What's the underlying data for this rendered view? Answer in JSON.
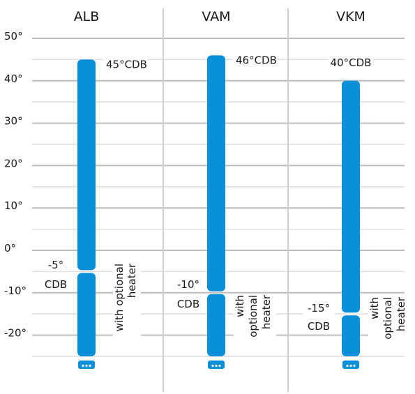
{
  "chart_data": {
    "type": "bar",
    "orientation": "vertical-range",
    "y_unit": "°C",
    "ylim": [
      -25,
      50
    ],
    "y_ticks": [
      50,
      40,
      30,
      20,
      10,
      0,
      -10,
      -20
    ],
    "y_tick_labels": [
      "50°",
      "40°",
      "30°",
      "20°",
      "10°",
      "0°",
      "-10°",
      "-20°"
    ],
    "grid": true,
    "colors": {
      "bar": "#0a8fd9",
      "grid_major": "#bdbdbd",
      "grid_minor": "#dddddd"
    },
    "categories": [
      "ALB",
      "VAM",
      "VKM"
    ],
    "series": [
      {
        "ranges": [
          {
            "low": -5,
            "high": 45
          },
          {
            "low": -10,
            "high": 46
          },
          {
            "low": -15,
            "high": 40
          }
        ]
      },
      {
        "name": "with optional heater",
        "ranges": [
          {
            "low": -25,
            "high": -5
          },
          {
            "low": -25,
            "high": -10
          },
          {
            "low": -25,
            "high": -15
          }
        ]
      }
    ],
    "top_labels": [
      "45°CDB",
      "46°CDB",
      "40°CDB"
    ],
    "bottom_labels": [
      [
        "-5°",
        "CDB"
      ],
      [
        "-10°",
        "CDB"
      ],
      [
        "-15°",
        "CDB"
      ]
    ],
    "heater_labels": [
      [
        "with optional",
        "heater"
      ],
      [
        "with",
        "optional",
        "heater"
      ],
      [
        "with",
        "optional",
        "heater"
      ]
    ],
    "icon": "more-dots-icon"
  }
}
